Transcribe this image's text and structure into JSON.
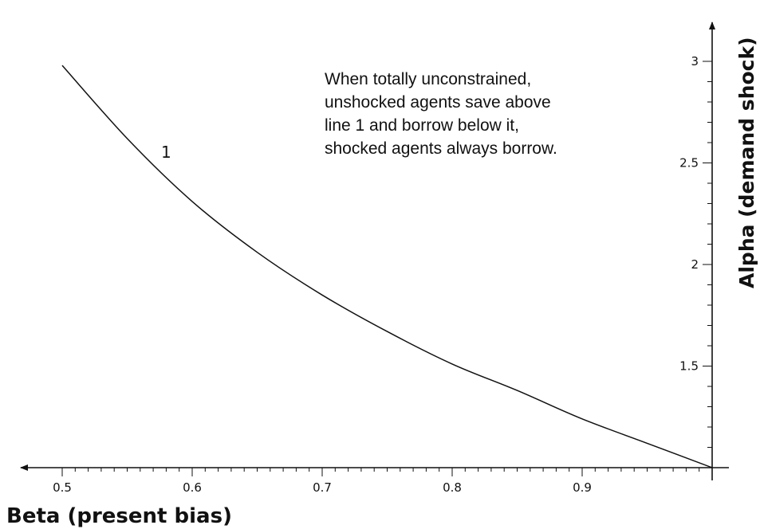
{
  "chart_data": {
    "type": "line",
    "title": "",
    "xlabel": "Beta (present bias)",
    "ylabel": "Alpha (demand shock)",
    "xlim": [
      0.5,
      1.0
    ],
    "ylim": [
      1.0,
      3.0
    ],
    "x_ticks": [
      0.5,
      0.6,
      0.7,
      0.8,
      0.9
    ],
    "x_tick_labels": [
      "0.5",
      "0.6",
      "0.7",
      "0.8",
      "0.9"
    ],
    "y_ticks": [
      1.5,
      2,
      2.5,
      3
    ],
    "y_tick_labels": [
      "1.5",
      "2",
      "2.5",
      "3"
    ],
    "x_axis_direction": "reversed",
    "y_axis_position": "right",
    "grid": false,
    "series": [
      {
        "name": "1",
        "x": [
          0.5,
          0.55,
          0.6,
          0.65,
          0.7,
          0.75,
          0.8,
          0.85,
          0.9,
          0.95,
          1.0
        ],
        "y": [
          2.98,
          2.62,
          2.31,
          2.06,
          1.85,
          1.67,
          1.51,
          1.38,
          1.24,
          1.12,
          1.0
        ]
      }
    ],
    "curve_label": "1",
    "annotation": [
      "When totally unconstrained,",
      "unshocked agents save above",
      "line 1 and borrow below it,",
      "shocked agents always borrow."
    ],
    "colors": {
      "line": "#111111",
      "axis": "#111111"
    }
  }
}
